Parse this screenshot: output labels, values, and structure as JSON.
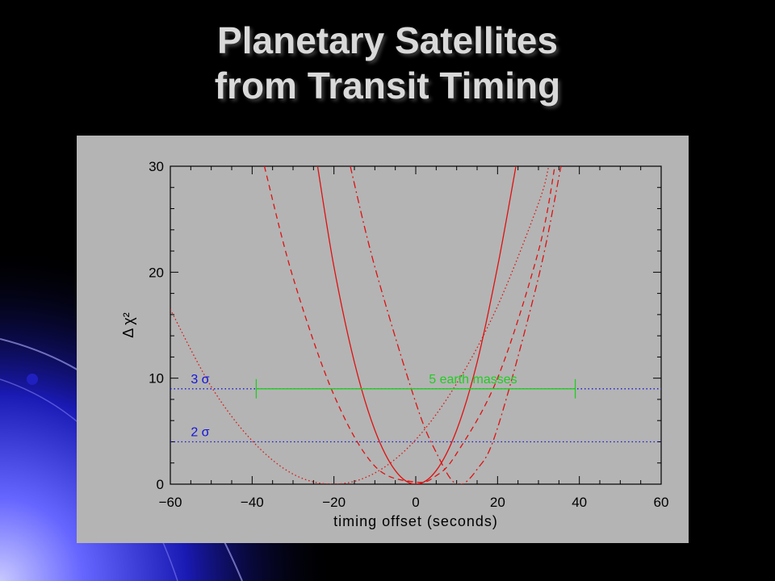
{
  "slide": {
    "title_line1": "Planetary Satellites",
    "title_line2": "from Transit Timing"
  },
  "colors": {
    "background": "#000000",
    "panel": "#b4b4b4",
    "curves": "#e01010",
    "sigma_lines": "#1414dc",
    "mass_bar": "#22cc22"
  },
  "chart_data": {
    "type": "line",
    "title": "",
    "xlabel": "timing offset (seconds)",
    "ylabel": "Δ χ²",
    "xlim": [
      -60,
      60
    ],
    "ylim": [
      0,
      30
    ],
    "x_ticks": [
      "−60",
      "−40",
      "−20",
      "0",
      "20",
      "40",
      "60"
    ],
    "y_ticks": [
      "0",
      "10",
      "20",
      "30"
    ],
    "grid": false,
    "series": [
      {
        "style": "solid",
        "color": "#e01010",
        "x": [
          -24,
          -20,
          -15,
          -10,
          -5,
          0,
          5,
          10,
          15,
          20,
          24.5
        ],
        "y": [
          30.0,
          20.5,
          11.5,
          5.1,
          1.28,
          0,
          1.28,
          5.1,
          11.5,
          20.5,
          30.0
        ]
      },
      {
        "style": "dashed",
        "color": "#e01010",
        "x": [
          -37,
          -30,
          -20,
          -10,
          0,
          5,
          10,
          20,
          30,
          34
        ],
        "y": [
          30.0,
          19.5,
          8.4,
          1.7,
          0.2,
          0.8,
          2.9,
          10.0,
          22.0,
          30.0
        ]
      },
      {
        "style": "dotted",
        "color": "#e01010",
        "x": [
          -60,
          -50,
          -40,
          -30,
          -20,
          -10,
          0,
          10,
          20,
          30,
          32.5
        ],
        "y": [
          16.5,
          9.2,
          4.1,
          0.95,
          0,
          1.05,
          4.2,
          9.5,
          16.8,
          26.5,
          30.0
        ]
      },
      {
        "style": "dashdot",
        "color": "#e01010",
        "x": [
          -16,
          -10,
          0,
          5,
          10,
          15,
          20,
          30,
          35.5
        ],
        "y": [
          30.0,
          20.5,
          7.7,
          3.0,
          0,
          1.4,
          5.3,
          19.5,
          30.0
        ]
      }
    ],
    "reference_lines": [
      {
        "label": "3 σ",
        "y": 9,
        "style": "dotted",
        "color": "#1414dc"
      },
      {
        "label": "2 σ",
        "y": 4,
        "style": "dotted",
        "color": "#1414dc"
      }
    ],
    "annotations": [
      {
        "text": "5 earth masses",
        "x_range": [
          -39,
          39
        ],
        "y": 9,
        "color": "#22cc22"
      }
    ]
  }
}
